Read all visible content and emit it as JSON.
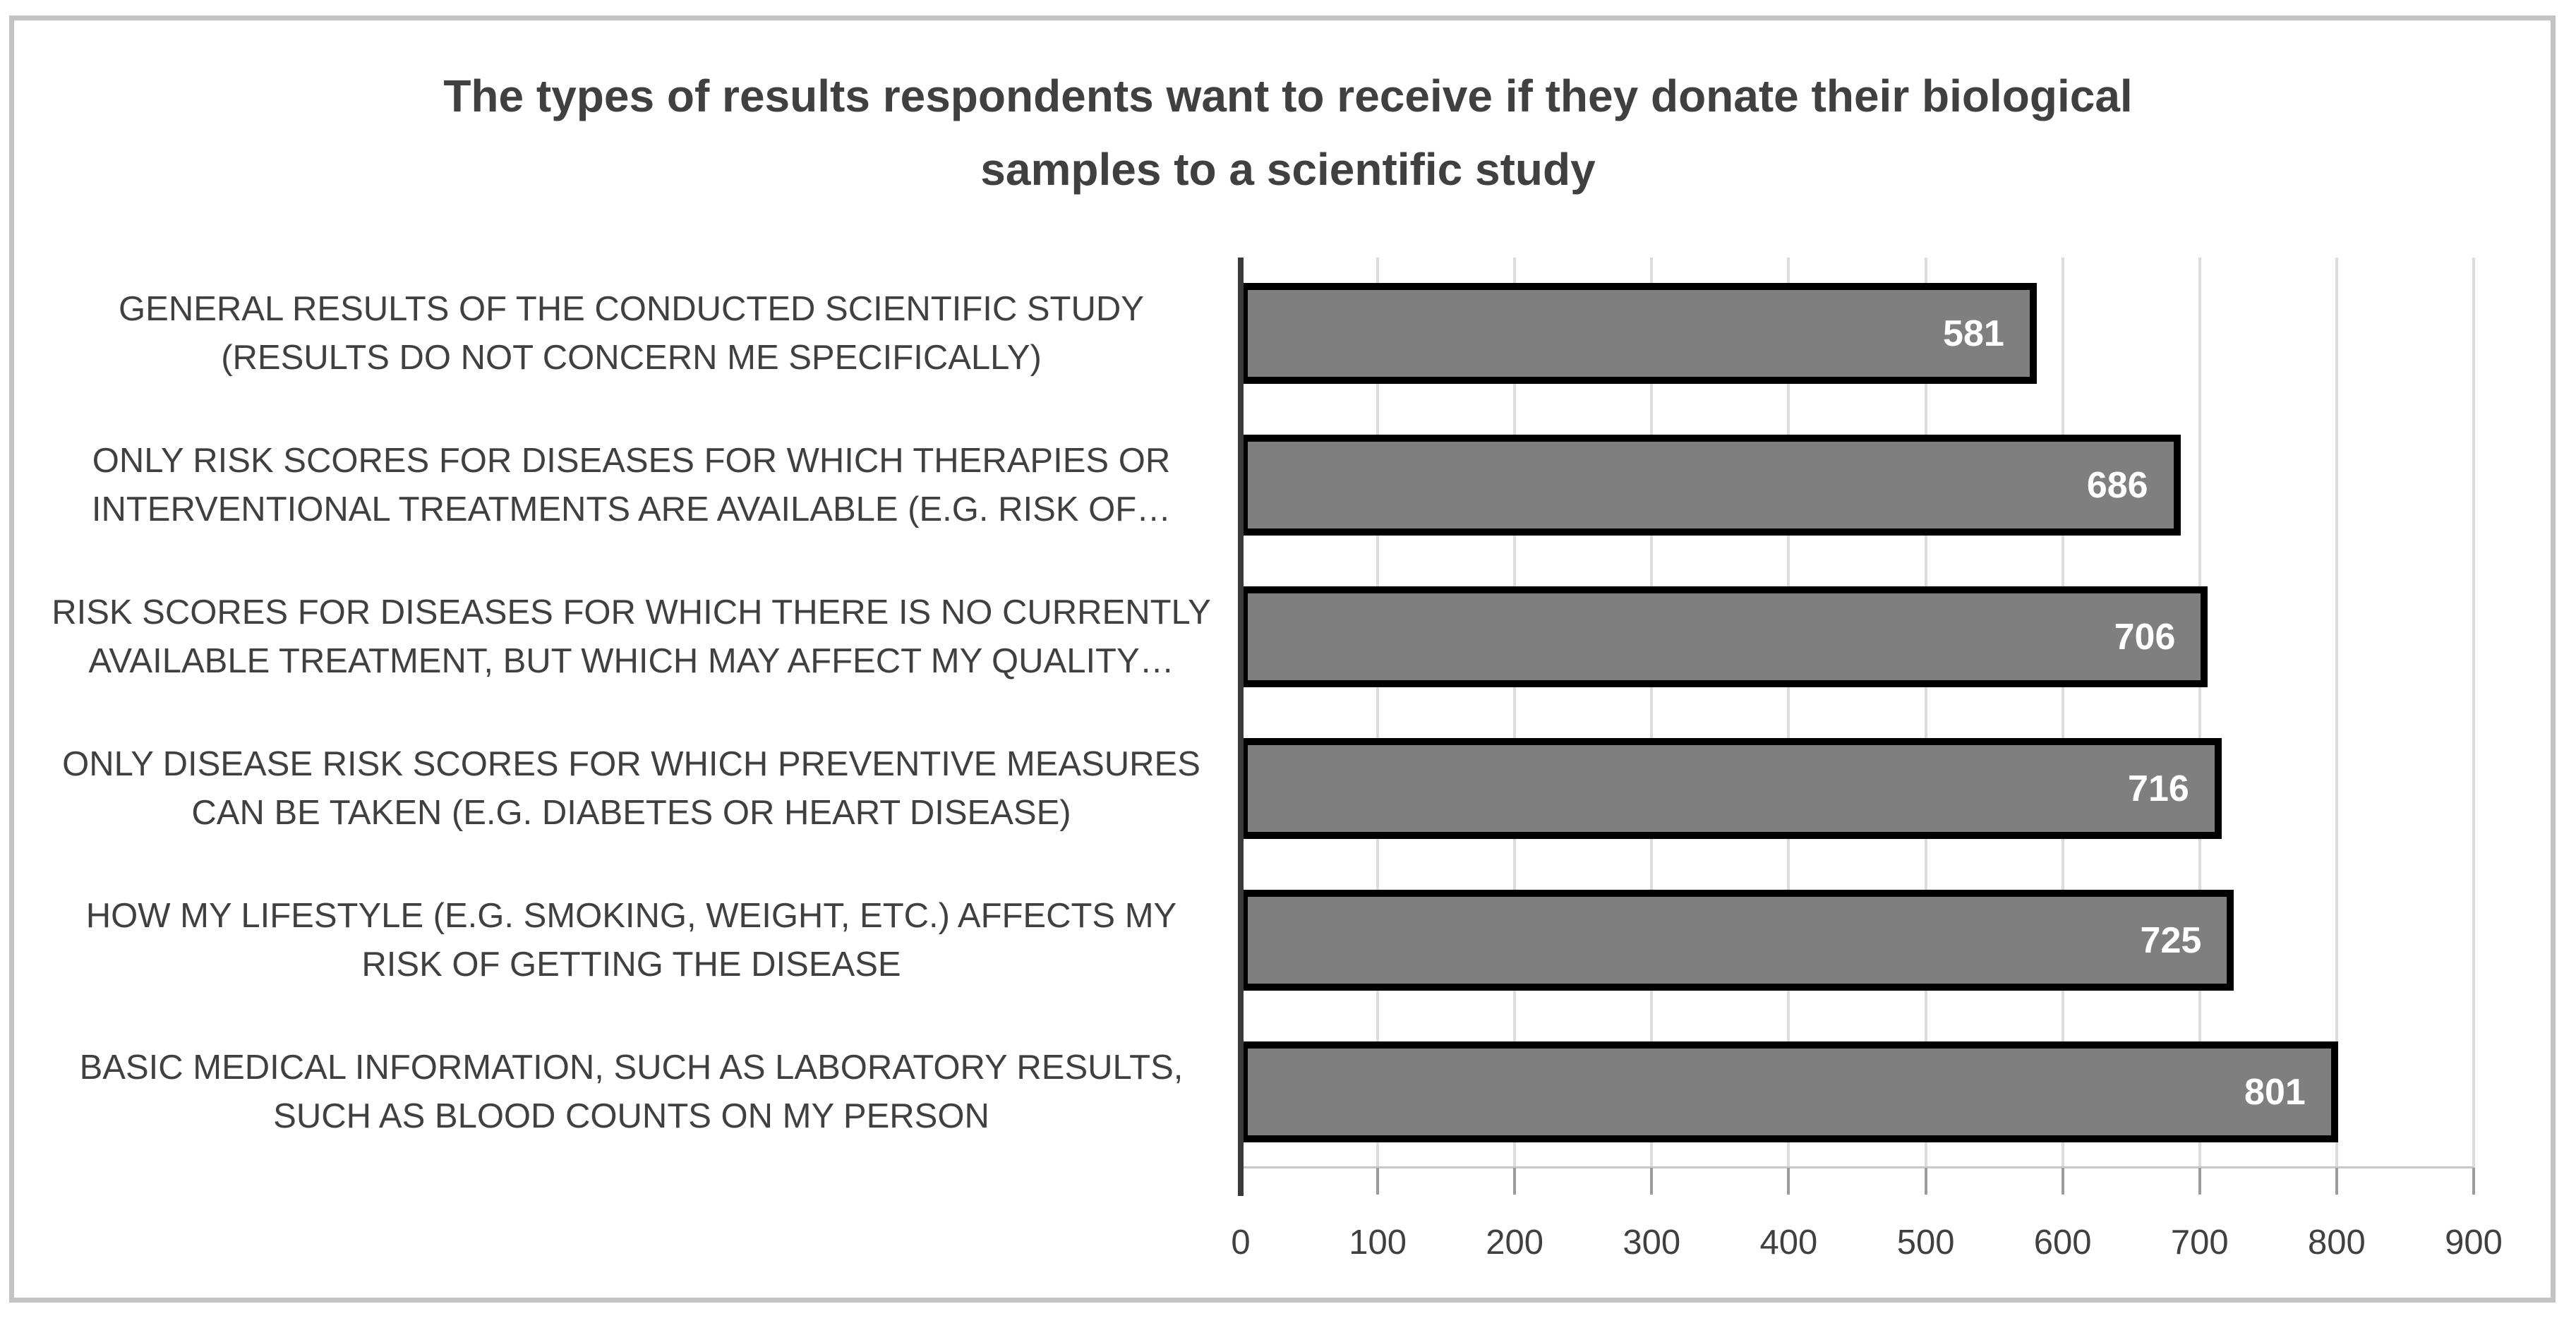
{
  "title": {
    "line1": "The types of results respondents want to receive if they donate their biological",
    "line2": "samples to a scientific study"
  },
  "chart_data": {
    "type": "bar",
    "orientation": "horizontal",
    "title": "The types of results respondents want to receive if they donate their biological samples to a scientific study",
    "categories": [
      "GENERAL RESULTS OF THE CONDUCTED SCIENTIFIC STUDY (RESULTS DO NOT CONCERN ME SPECIFICALLY)",
      "ONLY RISK SCORES FOR DISEASES FOR WHICH THERAPIES OR INTERVENTIONAL TREATMENTS ARE AVAILABLE (E.G. RISK OF…",
      "RISK SCORES FOR DISEASES FOR WHICH THERE IS NO CURRENTLY AVAILABLE TREATMENT, BUT WHICH MAY AFFECT MY QUALITY…",
      "ONLY DISEASE RISK SCORES FOR WHICH PREVENTIVE MEASURES CAN BE TAKEN (E.G. DIABETES OR HEART DISEASE)",
      "HOW MY LIFESTYLE (E.G. SMOKING, WEIGHT, ETC.) AFFECTS MY RISK OF GETTING THE DISEASE",
      "BASIC MEDICAL INFORMATION, SUCH AS LABORATORY RESULTS, SUCH AS BLOOD COUNTS ON MY PERSON"
    ],
    "values": [
      581,
      686,
      706,
      716,
      725,
      801
    ],
    "xlabel": "",
    "ylabel": "",
    "xlim": [
      0,
      900
    ],
    "x_ticks": [
      0,
      100,
      200,
      300,
      400,
      500,
      600,
      700,
      800,
      900
    ],
    "grid": "vertical-gridlines",
    "legend": "none",
    "data_labels_position": "inside-end",
    "colors": {
      "bar_fill": "#7f7f7f",
      "bar_border": "#000000",
      "value_label": "#ffffff",
      "title_text": "#404040",
      "axis_text": "#404040",
      "gridline": "#dcdcdc",
      "axis_line": "#3a3a3a",
      "tick_mark": "#9b9b9b",
      "chart_border": "#c3c3c3",
      "background": "#ffffff"
    }
  },
  "category_label_lines": [
    [
      "GENERAL RESULTS OF THE CONDUCTED SCIENTIFIC STUDY",
      "(RESULTS DO NOT CONCERN ME SPECIFICALLY)"
    ],
    [
      "ONLY RISK SCORES FOR DISEASES FOR WHICH THERAPIES OR",
      "INTERVENTIONAL TREATMENTS ARE AVAILABLE (E.G. RISK OF…"
    ],
    [
      "RISK SCORES FOR DISEASES FOR WHICH THERE IS NO CURRENTLY",
      "AVAILABLE TREATMENT, BUT WHICH MAY AFFECT MY QUALITY…"
    ],
    [
      "ONLY DISEASE RISK SCORES FOR WHICH PREVENTIVE MEASURES",
      "CAN BE TAKEN (E.G. DIABETES OR HEART DISEASE)"
    ],
    [
      "HOW MY LIFESTYLE (E.G. SMOKING, WEIGHT, ETC.) AFFECTS MY",
      "RISK OF GETTING THE DISEASE"
    ],
    [
      "BASIC MEDICAL INFORMATION, SUCH AS LABORATORY RESULTS,",
      "SUCH AS BLOOD COUNTS ON MY PERSON"
    ]
  ]
}
